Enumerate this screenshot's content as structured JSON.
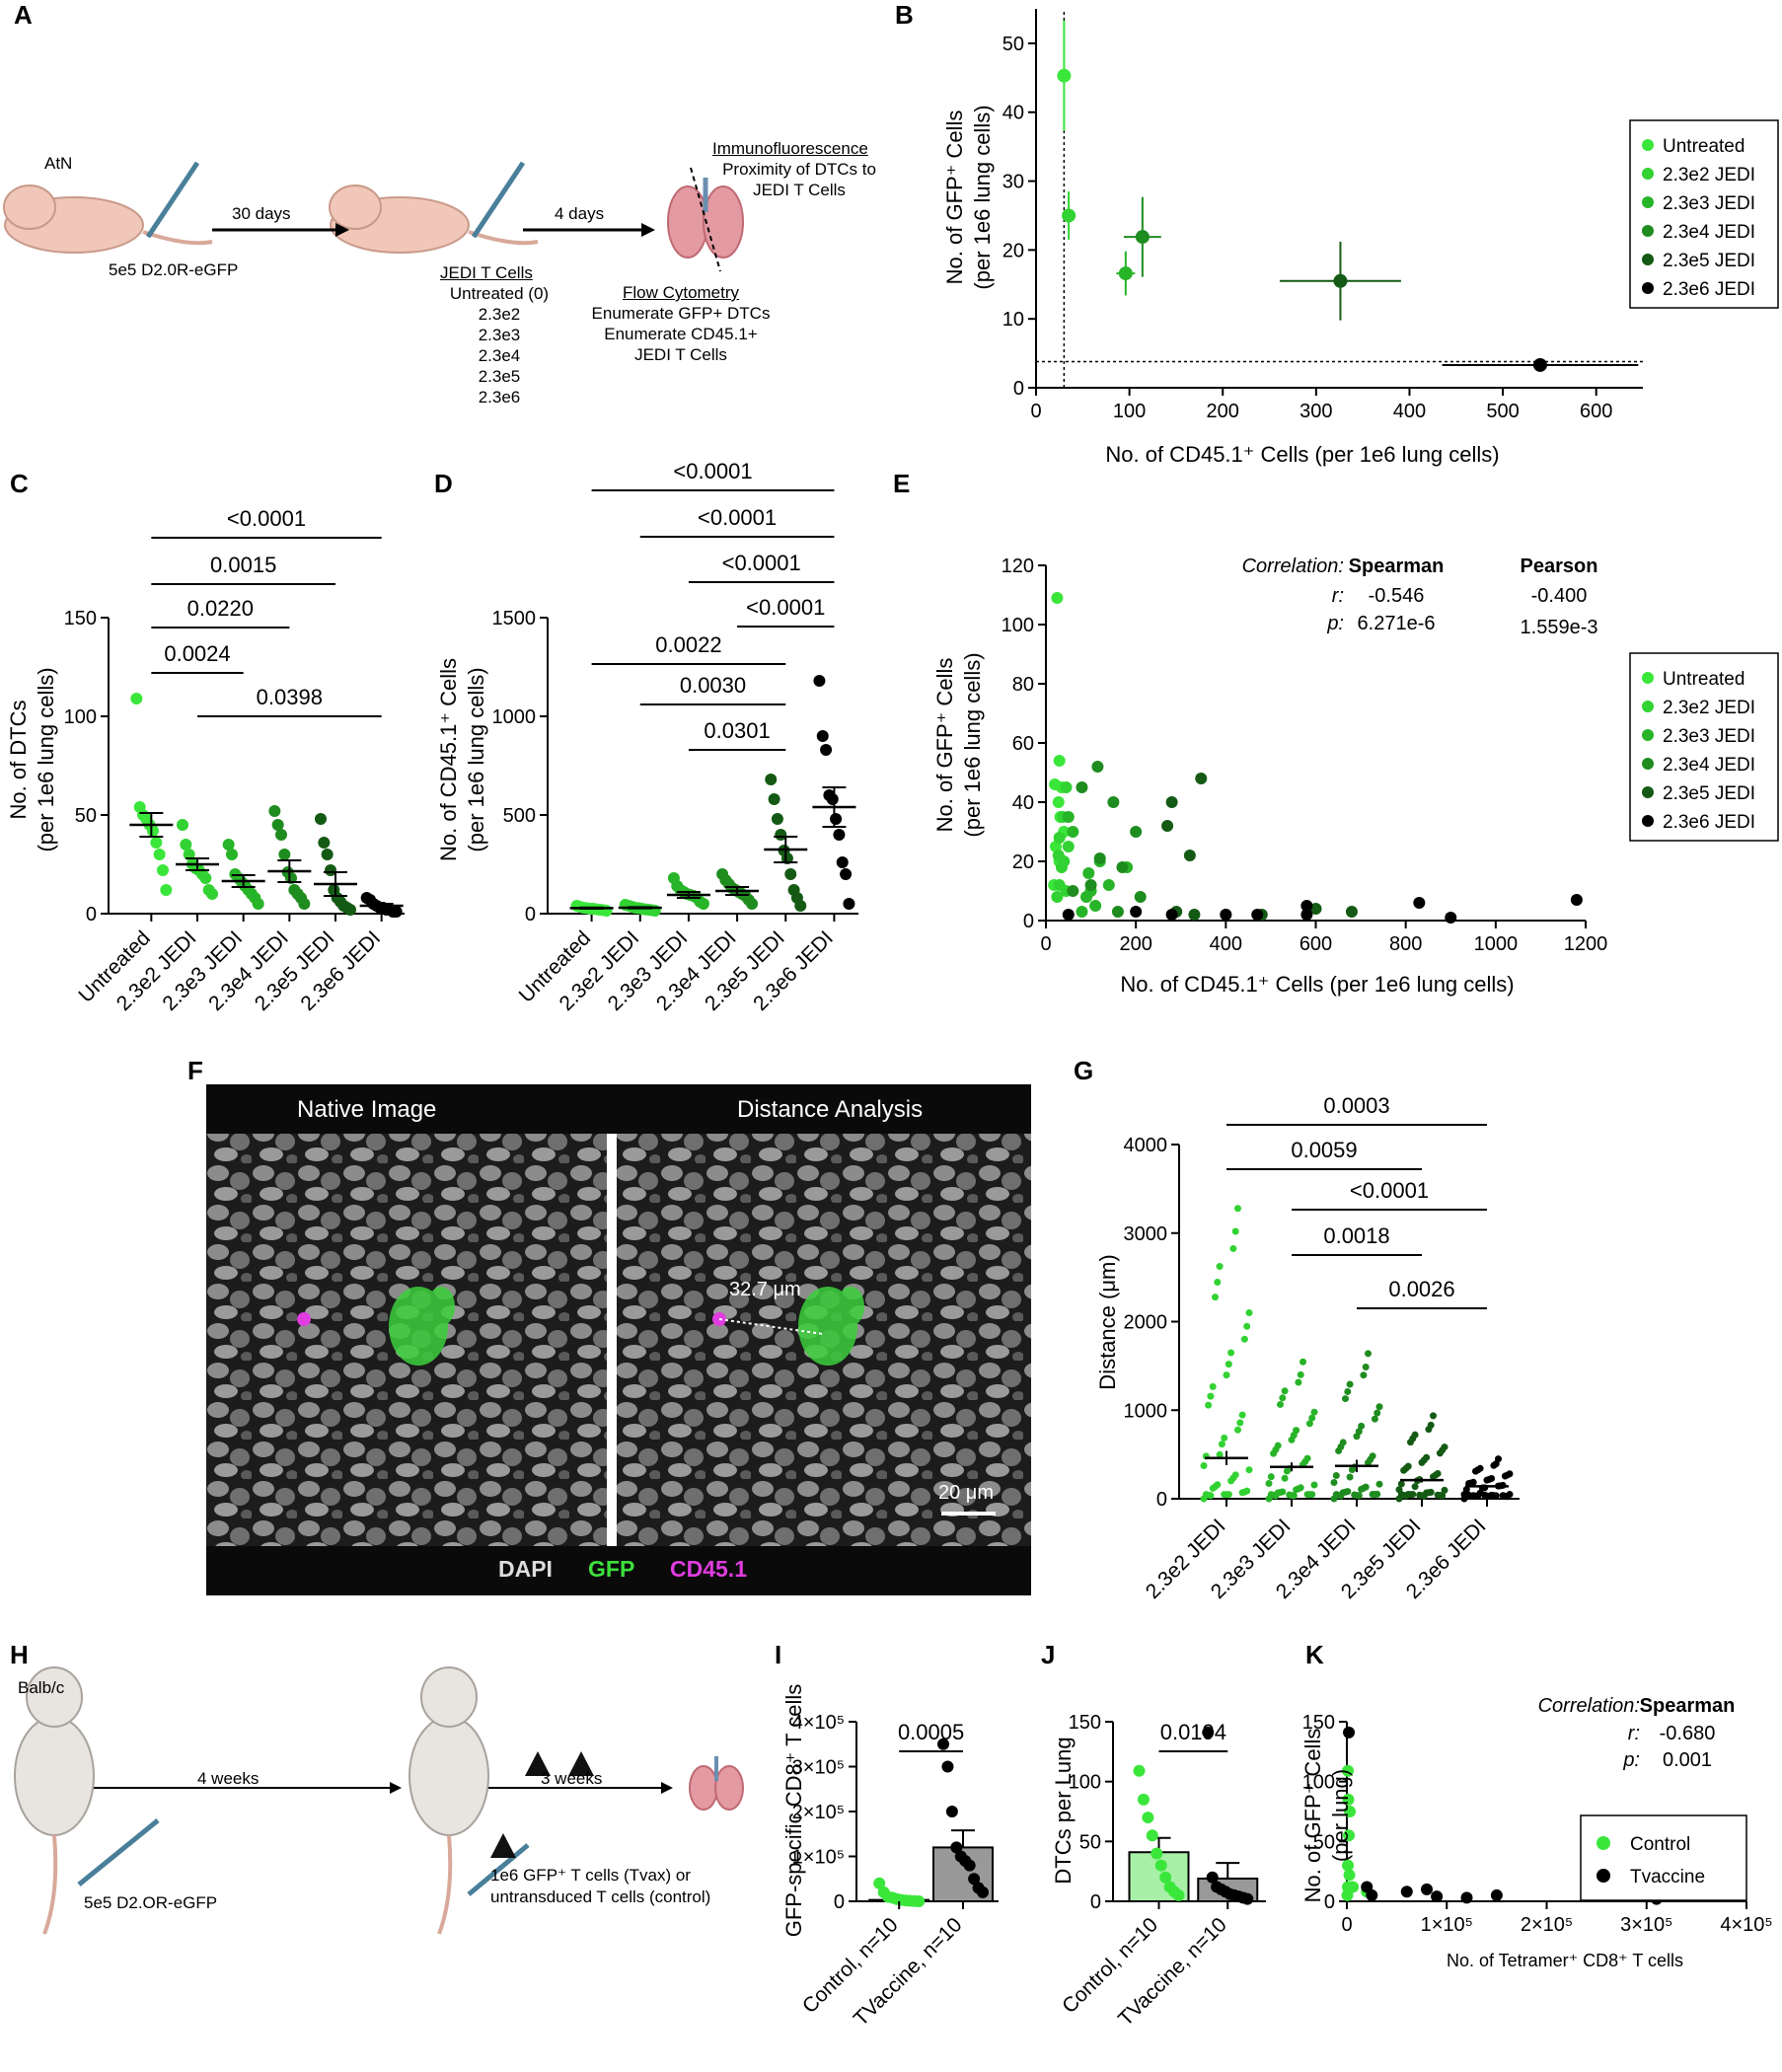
{
  "labels": {
    "A": "A",
    "B": "B",
    "C": "C",
    "D": "D",
    "E": "E",
    "F": "F",
    "G": "G",
    "H": "H",
    "I": "I",
    "J": "J",
    "K": "K"
  },
  "schemA": {
    "mouse": "AtN",
    "cells": "5e5 D2.0R-eGFP",
    "step1": "30 days",
    "step2": "4 days",
    "tcells_title": "JEDI T Cells",
    "tcells": [
      "Untreated (0)",
      "2.3e2",
      "2.3e3",
      "2.3e4",
      "2.3e5",
      "2.3e6"
    ],
    "if_title": "Immunofluorescence",
    "if_desc": "Proximity of DTCs to JEDI T Cells",
    "fc_title": "Flow Cytometry",
    "fc_desc": [
      "Enumerate GFP+ DTCs",
      "Enumerate CD45.1+",
      "JEDI T Cells"
    ]
  },
  "schemH": {
    "mouse": "Balb/c",
    "cells": "5e5 D2.OR-eGFP",
    "step1": "4 weeks",
    "step2": "3 weeks",
    "treat1": "1e6 GFP⁺ T cells (Tvax) or",
    "treat2": "untransduced T cells (control)"
  },
  "groups": [
    "Untreated",
    "2.3e2 JEDI",
    "2.3e3 JEDI",
    "2.3e4 JEDI",
    "2.3e5 JEDI",
    "2.3e6 JEDI"
  ],
  "colors": {
    "g0": "#3be63b",
    "g1": "#32d232",
    "g2": "#28b428",
    "g3": "#1f8c1f",
    "g4": "#145a14",
    "g5": "#000000",
    "tv": "#000000",
    "ctrl": "#3be63b",
    "gray": "#888888"
  },
  "B": {
    "xlabel": "No. of CD45.1⁺ Cells (per 1e6 lung cells)",
    "ylabel1": "No. of GFP⁺ Cells",
    "ylabel2": "(per 1e6 lung cells)"
  },
  "C": {
    "ylabel1": "No. of DTCs",
    "ylabel2": "(per 1e6 lung cells)",
    "pvals": [
      "<0.0001",
      "0.0015",
      "0.0220",
      "0.0024",
      "0.0398"
    ]
  },
  "D": {
    "ylabel1": "No. of CD45.1⁺ Cells",
    "ylabel2": "(per 1e6 lung cells)",
    "pvals": [
      "<0.0001",
      "<0.0001",
      "<0.0001",
      "<0.0001",
      "0.0022",
      "0.0030",
      "0.0301"
    ]
  },
  "E": {
    "xlabel": "No. of CD45.1⁺ Cells (per 1e6 lung cells)",
    "ylabel1": "No. of GFP⁺ Cells",
    "ylabel2": "(per 1e6 lung cells)",
    "corr_label": "Correlation",
    "spearman": "Spearman",
    "pearson": "Pearson",
    "r": "r:",
    "p": "p:",
    "sp_r": "-0.546",
    "sp_p": "6.271e-6",
    "pe_r": "-0.400",
    "pe_p": "1.559e-3"
  },
  "F": {
    "native": "Native Image",
    "distance": "Distance Analysis",
    "dist_label": "32.7 μm",
    "scale": "20 μm",
    "dapi": "DAPI",
    "gfp": "GFP",
    "cd45": "CD45.1"
  },
  "G": {
    "ylabel": "Distance (μm)",
    "groups": [
      "2.3e2 JEDI",
      "2.3e3 JEDI",
      "2.3e4 JEDI",
      "2.3e5 JEDI",
      "2.3e6 JEDI"
    ],
    "pvals": [
      "0.0003",
      "0.0059",
      "<0.0001",
      "0.0018",
      "0.0026"
    ]
  },
  "I": {
    "ylabel": "GFP-specific CD8⁺ T cells",
    "groups": [
      "Control, n=10",
      "TVaccine, n=10"
    ],
    "pval": "0.0005"
  },
  "J": {
    "ylabel": "DTCs per Lung",
    "groups": [
      "Control, n=10",
      "TVaccine, n=10"
    ],
    "pval": "0.0194"
  },
  "K": {
    "xlabel": "No. of Tetramer⁺ CD8⁺ T cells",
    "ylabel1": "No. of GFP⁺ Cells",
    "ylabel2": "(per lung)",
    "corr_label": "Correlation",
    "spearman": "Spearman",
    "r": "r:",
    "p": "p:",
    "sp_r": "-0.680",
    "sp_p": "0.001",
    "legend": [
      "Control",
      "Tvaccine"
    ]
  },
  "chart_data": [
    {
      "panel": "B",
      "type": "scatter",
      "xlabel": "No. of CD45.1⁺ Cells (per 1e6 lung cells)",
      "ylabel": "No. of GFP⁺ Cells (per 1e6 lung cells)",
      "xlim": [
        0,
        650
      ],
      "ylim": [
        0,
        55
      ],
      "xticks": [
        0,
        100,
        200,
        300,
        400,
        500,
        600
      ],
      "yticks": [
        0,
        10,
        20,
        30,
        40,
        50
      ],
      "series": [
        {
          "name": "Untreated",
          "x": 30,
          "y": 45.3,
          "xerr": 0,
          "yerr": 8
        },
        {
          "name": "2.3e2 JEDI",
          "x": 35,
          "y": 25,
          "xerr": 0,
          "yerr": 3.5
        },
        {
          "name": "2.3e3 JEDI",
          "x": 96,
          "y": 16.6,
          "xerr": 10,
          "yerr": 3.2
        },
        {
          "name": "2.3e4 JEDI",
          "x": 114,
          "y": 21.9,
          "xerr": 20,
          "yerr": 5.8
        },
        {
          "name": "2.3e5 JEDI",
          "x": 326,
          "y": 15.5,
          "xerr": 65,
          "yerr": 5.7
        },
        {
          "name": "2.3e6 JEDI",
          "x": 540,
          "y": 3.3,
          "xerr": 105,
          "yerr": 0.4
        }
      ],
      "ref_v": 30,
      "ref_h": 3.8
    },
    {
      "panel": "C",
      "type": "scatter",
      "ylabel": "No. of DTCs (per 1e6 lung cells)",
      "ylim": [
        0,
        150
      ],
      "yticks": [
        0,
        50,
        100,
        150
      ],
      "categories": [
        "Untreated",
        "2.3e2 JEDI",
        "2.3e3 JEDI",
        "2.3e4 JEDI",
        "2.3e5 JEDI",
        "2.3e6 JEDI"
      ],
      "values": [
        [
          109,
          54,
          50,
          48,
          45,
          42,
          36,
          30,
          22,
          12
        ],
        [
          45,
          35,
          30,
          25,
          23,
          22,
          20,
          18,
          12,
          10
        ],
        [
          35,
          30,
          20,
          18,
          16,
          14,
          12,
          10,
          8,
          5
        ],
        [
          52,
          45,
          40,
          30,
          21,
          18,
          12,
          10,
          8,
          5
        ],
        [
          48,
          36,
          30,
          22,
          12,
          8,
          6,
          4,
          3,
          2
        ],
        [
          8,
          7,
          5,
          4,
          3,
          3,
          2,
          2,
          1,
          1
        ]
      ],
      "means": [
        45,
        25,
        16.5,
        21.5,
        15,
        4
      ],
      "sem": [
        6,
        3,
        3,
        5.5,
        6,
        1
      ]
    },
    {
      "panel": "D",
      "type": "scatter",
      "ylabel": "No. of CD45.1⁺ Cells (per 1e6 lung cells)",
      "ylim": [
        0,
        1500
      ],
      "yticks": [
        0,
        500,
        1000,
        1500
      ],
      "categories": [
        "Untreated",
        "2.3e2 JEDI",
        "2.3e3 JEDI",
        "2.3e4 JEDI",
        "2.3e5 JEDI",
        "2.3e6 JEDI"
      ],
      "values": [
        [
          40,
          35,
          30,
          28,
          25,
          25,
          22,
          20,
          18,
          15
        ],
        [
          45,
          40,
          35,
          30,
          28,
          25,
          22,
          20,
          18,
          15
        ],
        [
          180,
          140,
          120,
          110,
          100,
          95,
          90,
          80,
          60,
          50
        ],
        [
          200,
          170,
          150,
          130,
          120,
          110,
          100,
          90,
          70,
          50
        ],
        [
          680,
          580,
          480,
          400,
          320,
          280,
          200,
          120,
          80,
          40
        ],
        [
          1180,
          900,
          830,
          600,
          580,
          480,
          400,
          260,
          200,
          50
        ]
      ],
      "means": [
        28,
        30,
        95,
        115,
        325,
        540
      ],
      "sem": [
        3,
        3,
        15,
        20,
        65,
        100
      ]
    },
    {
      "panel": "E",
      "type": "scatter",
      "xlabel": "No. of CD45.1⁺ Cells (per 1e6 lung cells)",
      "ylabel": "No. of GFP⁺ Cells (per 1e6 lung cells)",
      "xlim": [
        0,
        1200
      ],
      "ylim": [
        0,
        120
      ],
      "xticks": [
        0,
        200,
        400,
        600,
        800,
        1000,
        1200
      ],
      "yticks": [
        0,
        20,
        40,
        60,
        80,
        100,
        120
      ],
      "series": [
        {
          "name": "Untreated",
          "points": [
            [
              25,
              109
            ],
            [
              30,
              54
            ],
            [
              20,
              46
            ],
            [
              35,
              45
            ],
            [
              28,
              40
            ],
            [
              40,
              30
            ],
            [
              22,
              25
            ],
            [
              30,
              20
            ],
            [
              18,
              12
            ],
            [
              32,
              35
            ]
          ]
        },
        {
          "name": "2.3e2 JEDI",
          "points": [
            [
              45,
              45
            ],
            [
              38,
              35
            ],
            [
              30,
              28
            ],
            [
              50,
              25
            ],
            [
              28,
              22
            ],
            [
              40,
              20
            ],
            [
              35,
              18
            ],
            [
              30,
              12
            ],
            [
              45,
              10
            ],
            [
              25,
              8
            ]
          ]
        },
        {
          "name": "2.3e3 JEDI",
          "points": [
            [
              180,
              18
            ],
            [
              120,
              20
            ],
            [
              140,
              12
            ],
            [
              95,
              16
            ],
            [
              100,
              10
            ],
            [
              60,
              30
            ],
            [
              50,
              35
            ],
            [
              110,
              5
            ],
            [
              90,
              8
            ],
            [
              80,
              3
            ]
          ]
        },
        {
          "name": "2.3e4 JEDI",
          "points": [
            [
              115,
              52
            ],
            [
              80,
              45
            ],
            [
              150,
              40
            ],
            [
              200,
              30
            ],
            [
              120,
              21
            ],
            [
              170,
              18
            ],
            [
              100,
              12
            ],
            [
              210,
              8
            ],
            [
              60,
              10
            ],
            [
              160,
              3
            ]
          ]
        },
        {
          "name": "2.3e5 JEDI",
          "points": [
            [
              345,
              48
            ],
            [
              280,
              40
            ],
            [
              270,
              32
            ],
            [
              320,
              22
            ],
            [
              600,
              4
            ],
            [
              680,
              3
            ],
            [
              480,
              2
            ],
            [
              400,
              2
            ],
            [
              330,
              2
            ],
            [
              290,
              3
            ]
          ]
        },
        {
          "name": "2.3e6 JEDI",
          "points": [
            [
              1180,
              7
            ],
            [
              830,
              6
            ],
            [
              900,
              1
            ],
            [
              580,
              5
            ],
            [
              580,
              2
            ],
            [
              470,
              2
            ],
            [
              400,
              2
            ],
            [
              280,
              2
            ],
            [
              200,
              3
            ],
            [
              50,
              2
            ]
          ]
        }
      ]
    },
    {
      "panel": "G",
      "type": "scatter",
      "ylabel": "Distance (μm)",
      "ylim": [
        0,
        4000
      ],
      "yticks": [
        0,
        1000,
        2000,
        3000,
        4000
      ],
      "categories": [
        "2.3e2 JEDI",
        "2.3e3 JEDI",
        "2.3e4 JEDI",
        "2.3e5 JEDI",
        "2.3e6 JEDI"
      ],
      "means": [
        460,
        360,
        370,
        210,
        140
      ],
      "sem": [
        80,
        50,
        70,
        25,
        15
      ],
      "max": [
        3450,
        1600,
        1700,
        950,
        450
      ]
    },
    {
      "panel": "I",
      "type": "bar",
      "ylabel": "GFP-specific CD8⁺ T cells",
      "ylim": [
        0,
        400000
      ],
      "yticks": [
        "0",
        "1×10⁵",
        "2×10⁵",
        "3×10⁵",
        "4×10⁵"
      ],
      "categories": [
        "Control, n=10",
        "TVaccine, n=10"
      ],
      "values": [
        3000,
        120000
      ],
      "sem": [
        2000,
        38000
      ],
      "points": [
        [
          40000,
          20000,
          10000,
          8000,
          5000,
          3000,
          2000,
          1000,
          500,
          0
        ],
        [
          350000,
          300000,
          200000,
          120000,
          100000,
          90000,
          80000,
          50000,
          30000,
          20000
        ]
      ]
    },
    {
      "panel": "J",
      "type": "bar",
      "ylabel": "DTCs per Lung",
      "ylim": [
        0,
        150
      ],
      "yticks": [
        0,
        50,
        100,
        150
      ],
      "categories": [
        "Control, n=10",
        "TVaccine, n=10"
      ],
      "values": [
        41,
        19
      ],
      "sem": [
        12,
        13
      ],
      "points": [
        [
          109,
          85,
          70,
          55,
          40,
          30,
          20,
          12,
          8,
          5
        ],
        [
          141,
          20,
          12,
          10,
          8,
          6,
          5,
          4,
          3,
          2
        ]
      ]
    },
    {
      "panel": "K",
      "type": "scatter",
      "xlabel": "No. of Tetramer⁺ CD8⁺ T cells",
      "ylabel": "No. of GFP⁺ Cells (per lung)",
      "xlim": [
        0,
        400000
      ],
      "ylim": [
        0,
        150
      ],
      "xticks": [
        "0",
        "1×10⁵",
        "2×10⁵",
        "3×10⁵",
        "4×10⁵"
      ],
      "yticks": [
        0,
        50,
        100,
        150
      ],
      "series": [
        {
          "name": "Control",
          "points": [
            [
              1000,
              109
            ],
            [
              1500,
              85
            ],
            [
              3000,
              75
            ],
            [
              2000,
              55
            ],
            [
              1000,
              30
            ],
            [
              2500,
              22
            ],
            [
              1000,
              12
            ],
            [
              6000,
              12
            ],
            [
              20000,
              8
            ],
            [
              500,
              5
            ]
          ]
        },
        {
          "name": "Tvaccine",
          "points": [
            [
              2000,
              141
            ],
            [
              20000,
              12
            ],
            [
              25000,
              5
            ],
            [
              60000,
              8
            ],
            [
              80000,
              10
            ],
            [
              90000,
              4
            ],
            [
              120000,
              3
            ],
            [
              150000,
              5
            ],
            [
              310000,
              2
            ],
            [
              350000,
              7
            ]
          ]
        }
      ]
    }
  ]
}
